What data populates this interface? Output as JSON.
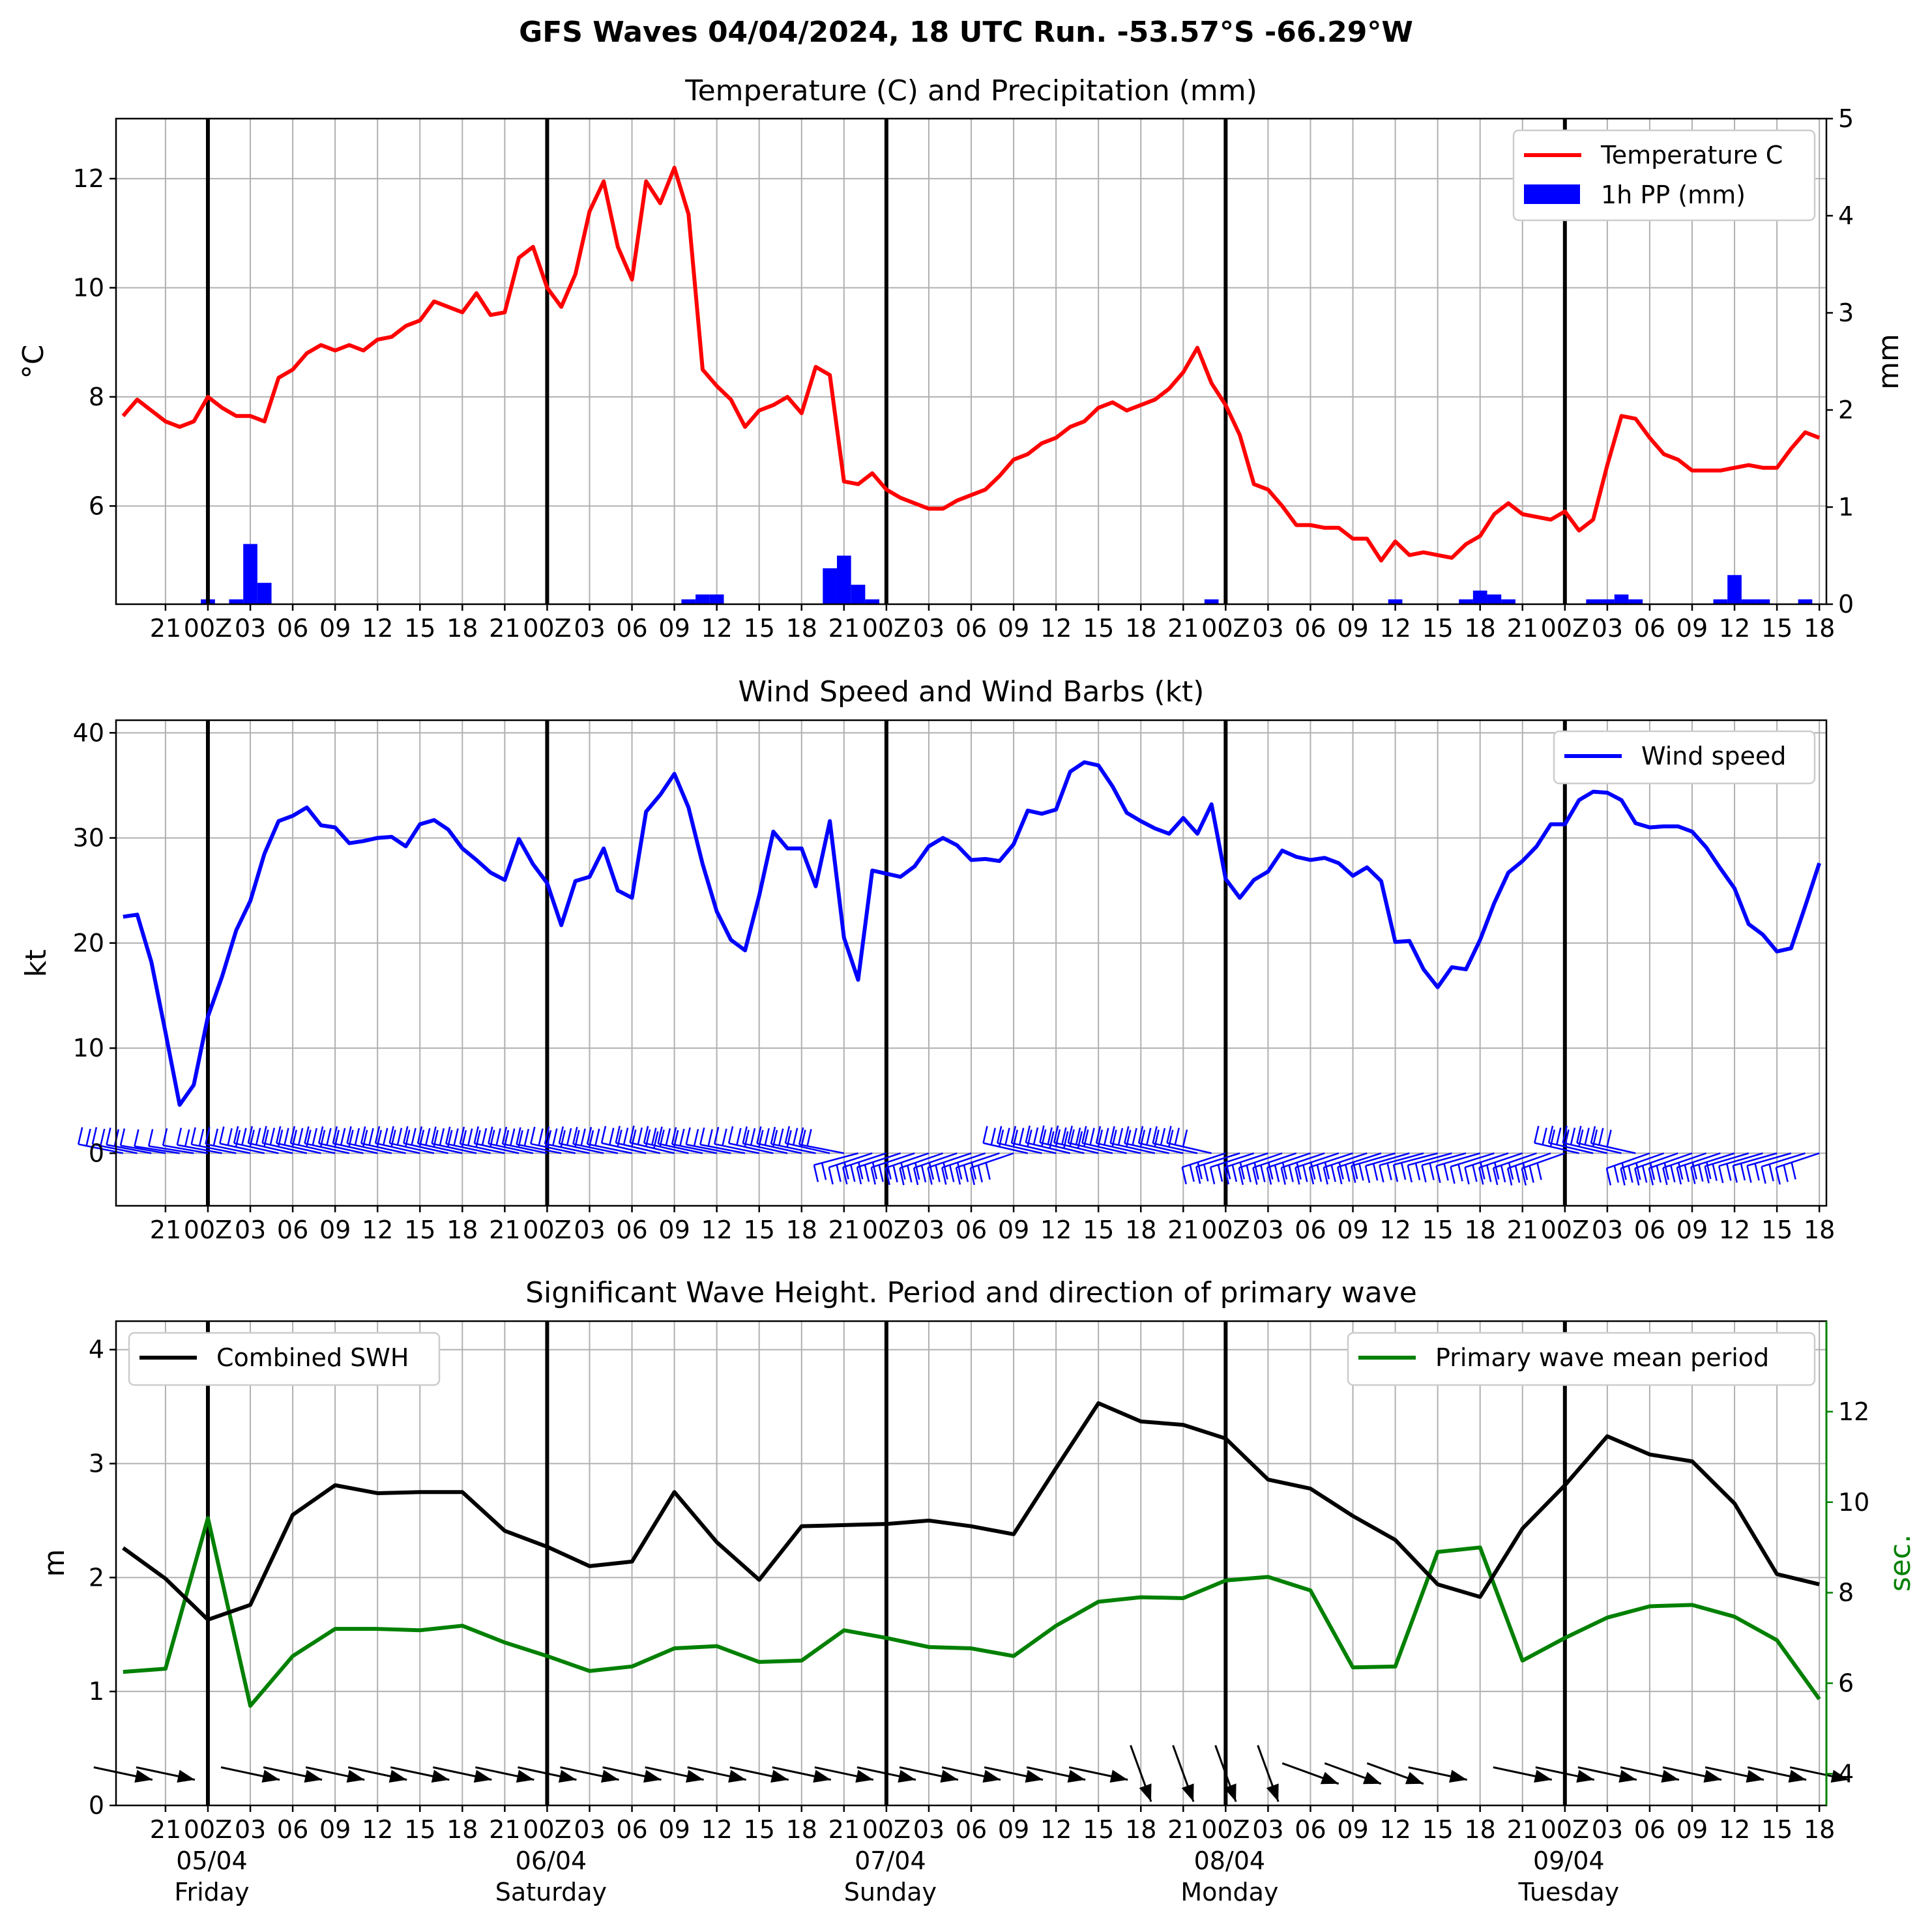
{
  "figure": {
    "title": "GFS Waves 04/04/2024, 18 UTC Run. -53.57°S -66.29°W"
  },
  "x_axis": {
    "hours_ticks": [
      "21",
      "00Z",
      "03",
      "06",
      "09",
      "12",
      "15",
      "18",
      "21",
      "00Z",
      "03",
      "06",
      "09",
      "12",
      "15",
      "18",
      "21",
      "00Z",
      "03",
      "06",
      "09",
      "12",
      "15",
      "18",
      "21",
      "00Z",
      "03",
      "06",
      "09",
      "12",
      "15",
      "18",
      "21",
      "00Z",
      "03",
      "06",
      "09",
      "12",
      "15",
      "18"
    ],
    "date_labels": [
      "05/04",
      "06/04",
      "07/04",
      "08/04",
      "09/04"
    ],
    "day_labels": [
      "Friday",
      "Saturday",
      "Sunday",
      "Monday",
      "Tuesday"
    ]
  },
  "chart_data": [
    {
      "type": "line",
      "title": "Temperature (C) and Precipitation (mm)",
      "ylabel": "°C",
      "ylabel_right": "mm",
      "ylim": [
        4.2,
        13.1
      ],
      "ylim_right": [
        0,
        5
      ],
      "yticks": [
        "6",
        "8",
        "10",
        "12"
      ],
      "yticks_right": [
        "0",
        "1",
        "2",
        "3",
        "4",
        "5"
      ],
      "legend": [
        "Temperature C",
        "1h PP (mm)"
      ],
      "legend_position": "upper right",
      "colors": {
        "temperature": "#ff0000",
        "precip": "#0000ff"
      },
      "series": [
        {
          "name": "Temperature C",
          "axis": "left",
          "x": [
            0,
            1,
            2,
            3,
            4,
            5,
            6,
            7,
            8,
            9,
            10,
            11,
            12,
            13,
            14,
            15,
            16,
            17,
            18,
            19,
            20,
            21,
            22,
            23,
            24,
            25,
            26,
            27,
            28,
            29,
            30,
            31,
            32,
            33,
            34,
            35,
            36,
            37,
            38,
            39,
            40,
            41,
            42,
            43,
            44,
            45,
            46,
            47,
            48,
            49,
            50,
            51,
            52,
            53,
            54,
            55,
            56,
            57,
            58,
            59,
            60,
            61,
            62,
            63,
            64,
            65,
            66,
            67,
            68,
            69,
            70,
            71,
            72,
            73,
            74,
            75,
            76,
            77,
            78,
            79,
            80,
            81,
            82,
            83,
            84,
            85,
            86,
            87,
            88,
            89,
            90,
            91,
            92,
            93,
            94,
            95,
            96,
            97,
            98,
            99,
            100,
            101,
            102,
            103,
            104,
            105,
            106,
            107,
            108,
            109,
            110,
            111,
            112,
            113,
            114,
            115,
            116,
            117,
            118,
            119,
            120
          ],
          "values": [
            7.65,
            7.95,
            7.75,
            7.55,
            7.45,
            7.55,
            8.0,
            7.8,
            7.65,
            7.65,
            7.55,
            8.35,
            8.5,
            8.8,
            8.95,
            8.85,
            8.95,
            8.85,
            9.05,
            9.1,
            9.3,
            9.4,
            9.75,
            9.65,
            9.55,
            9.9,
            9.5,
            9.55,
            10.55,
            10.75,
            10.0,
            9.65,
            10.25,
            11.4,
            11.95,
            10.75,
            10.15,
            11.95,
            11.55,
            12.2,
            11.35,
            8.5,
            8.2,
            7.95,
            7.45,
            7.75,
            7.85,
            8.0,
            7.7,
            8.55,
            8.4,
            6.45,
            6.4,
            6.6,
            6.3,
            6.15,
            6.05,
            5.95,
            5.95,
            6.1,
            6.2,
            6.3,
            6.55,
            6.85,
            6.95,
            7.15,
            7.25,
            7.45,
            7.55,
            7.8,
            7.9,
            7.75,
            7.85,
            7.95,
            8.15,
            8.45,
            8.9,
            8.25,
            7.85,
            7.3,
            6.4,
            6.3,
            6.0,
            5.65,
            5.65,
            5.6,
            5.6,
            5.4,
            5.4,
            5.0,
            5.35,
            5.1,
            5.15,
            5.1,
            5.05,
            5.3,
            5.45,
            5.85,
            6.05,
            5.85,
            5.8,
            5.75,
            5.9,
            5.55,
            5.75,
            6.75,
            7.65,
            7.6,
            7.25,
            6.95,
            6.85,
            6.65,
            6.65,
            6.65,
            6.7,
            6.75,
            6.7,
            6.7,
            7.05,
            7.35,
            7.25
          ]
        },
        {
          "name": "1h PP (mm)",
          "axis": "right",
          "type": "bar",
          "x": [
            6,
            8,
            9,
            10,
            40,
            41,
            42,
            50,
            51,
            52,
            53,
            77,
            90,
            95,
            96,
            97,
            98,
            104,
            105,
            106,
            107,
            113,
            114,
            115,
            116,
            119
          ],
          "values": [
            0.05,
            0.05,
            0.62,
            0.22,
            0.05,
            0.1,
            0.1,
            0.37,
            0.5,
            0.2,
            0.05,
            0.05,
            0.05,
            0.05,
            0.14,
            0.1,
            0.05,
            0.05,
            0.05,
            0.1,
            0.05,
            0.05,
            0.3,
            0.05,
            0.05,
            0.05
          ]
        }
      ]
    },
    {
      "type": "line",
      "title": "Wind Speed and Wind Barbs (kt)",
      "ylabel": "kt",
      "ylim": [
        -5,
        41.2
      ],
      "yticks": [
        "0",
        "10",
        "20",
        "30",
        "40"
      ],
      "legend": [
        "Wind speed"
      ],
      "legend_position": "upper right",
      "colors": {
        "wind": "#0000ff"
      },
      "series": [
        {
          "name": "Wind speed",
          "x": [
            0,
            1,
            2,
            3,
            4,
            5,
            6,
            7,
            8,
            9,
            10,
            11,
            12,
            13,
            14,
            15,
            16,
            17,
            18,
            19,
            20,
            21,
            22,
            23,
            24,
            25,
            26,
            27,
            28,
            29,
            30,
            31,
            32,
            33,
            34,
            35,
            36,
            37,
            38,
            39,
            40,
            41,
            42,
            43,
            44,
            45,
            46,
            47,
            48,
            49,
            50,
            51,
            52,
            53,
            54,
            55,
            56,
            57,
            58,
            59,
            60,
            61,
            62,
            63,
            64,
            65,
            66,
            67,
            68,
            69,
            70,
            71,
            72,
            73,
            74,
            75,
            76,
            77,
            78,
            79,
            80,
            81,
            82,
            83,
            84,
            85,
            86,
            87,
            88,
            89,
            90,
            91,
            92,
            93,
            94,
            95,
            96,
            97,
            98,
            99,
            100,
            101,
            102,
            103,
            104,
            105,
            106,
            107,
            108,
            109,
            110,
            111,
            112,
            113,
            114,
            115,
            116,
            117,
            118,
            119,
            120
          ],
          "values": [
            22.5,
            22.7,
            18.2,
            11.5,
            4.6,
            6.5,
            13.0,
            16.8,
            21.2,
            24.0,
            28.5,
            31.6,
            32.1,
            32.9,
            31.2,
            31.0,
            29.5,
            29.7,
            30.0,
            30.1,
            29.2,
            31.3,
            31.7,
            30.8,
            29.0,
            27.9,
            26.7,
            26.0,
            29.9,
            27.5,
            25.7,
            21.7,
            25.9,
            26.3,
            29.0,
            25.0,
            24.3,
            32.5,
            34.1,
            36.1,
            32.9,
            27.5,
            23.0,
            20.3,
            19.3,
            24.5,
            30.6,
            29.0,
            29.0,
            25.4,
            31.6,
            20.5,
            16.5,
            26.9,
            26.6,
            26.3,
            27.3,
            29.2,
            30.0,
            29.3,
            27.9,
            28.0,
            27.8,
            29.4,
            32.6,
            32.3,
            32.7,
            36.3,
            37.2,
            36.9,
            34.9,
            32.4,
            31.6,
            30.9,
            30.4,
            31.9,
            30.4,
            33.2,
            26.1,
            24.3,
            26.0,
            26.8,
            28.8,
            28.2,
            27.9,
            28.1,
            27.6,
            26.4,
            27.2,
            25.9,
            20.1,
            20.2,
            17.5,
            15.8,
            17.7,
            17.5,
            20.3,
            23.8,
            26.7,
            27.8,
            29.2,
            31.3,
            31.3,
            33.6,
            34.4,
            34.3,
            33.6,
            31.4,
            31.0,
            31.1,
            31.1,
            30.6,
            29.1,
            27.1,
            25.2,
            21.8,
            20.8,
            19.2,
            19.5,
            23.5,
            27.6
          ]
        }
      ]
    },
    {
      "type": "line",
      "title": "Significant Wave Height. Period and direction of primary wave",
      "ylabel": "m",
      "ylabel_right": "sec.",
      "ylim": [
        0,
        4.25
      ],
      "ylim_right": [
        3.3,
        14.0
      ],
      "yticks": [
        "0",
        "1",
        "2",
        "3",
        "4"
      ],
      "yticks_right": [
        "4",
        "6",
        "8",
        "10",
        "12"
      ],
      "legend": [
        "Combined SWH",
        "Primary wave mean period"
      ],
      "legend_position": [
        "upper left",
        "upper right"
      ],
      "colors": {
        "swh": "#000000",
        "period": "#008000",
        "period_axis": "#008000"
      },
      "series": [
        {
          "name": "Combined SWH",
          "axis": "left",
          "x": [
            0,
            3,
            6,
            9,
            12,
            15,
            18,
            21,
            24,
            27,
            30,
            33,
            36,
            39,
            42,
            45,
            48,
            51,
            54,
            57,
            60,
            63,
            66,
            69,
            72,
            75,
            78,
            81,
            84,
            87,
            90,
            93,
            96,
            99,
            102,
            105,
            108,
            111,
            114,
            117,
            120
          ],
          "values": [
            2.26,
            1.99,
            1.63,
            1.76,
            2.55,
            2.81,
            2.74,
            2.75,
            2.75,
            2.41,
            2.27,
            2.1,
            2.14,
            2.75,
            2.31,
            1.98,
            2.45,
            2.46,
            2.47,
            2.5,
            2.45,
            2.38,
            2.96,
            3.53,
            3.37,
            3.34,
            3.22,
            2.86,
            2.78,
            2.54,
            2.33,
            1.94,
            1.83,
            2.43,
            2.81,
            3.24,
            3.08,
            3.02,
            2.65,
            2.03,
            1.94
          ]
        },
        {
          "name": "Primary wave mean period",
          "axis": "right",
          "x": [
            0,
            3,
            6,
            9,
            12,
            15,
            18,
            21,
            24,
            27,
            30,
            33,
            36,
            39,
            42,
            45,
            48,
            51,
            54,
            57,
            60,
            63,
            66,
            69,
            72,
            75,
            78,
            81,
            84,
            87,
            90,
            93,
            96,
            99,
            102,
            105,
            108,
            111,
            114,
            117,
            120
          ],
          "values": [
            6.25,
            6.32,
            9.65,
            5.5,
            6.6,
            7.2,
            7.2,
            7.17,
            7.27,
            6.9,
            6.6,
            6.27,
            6.37,
            6.77,
            6.82,
            6.47,
            6.5,
            7.17,
            7.0,
            6.8,
            6.77,
            6.6,
            7.27,
            7.8,
            7.9,
            7.88,
            8.27,
            8.35,
            8.05,
            6.35,
            6.37,
            8.9,
            9.0,
            6.5,
            7.0,
            7.45,
            7.7,
            7.73,
            7.47,
            6.95,
            5.65
          ]
        }
      ]
    }
  ]
}
